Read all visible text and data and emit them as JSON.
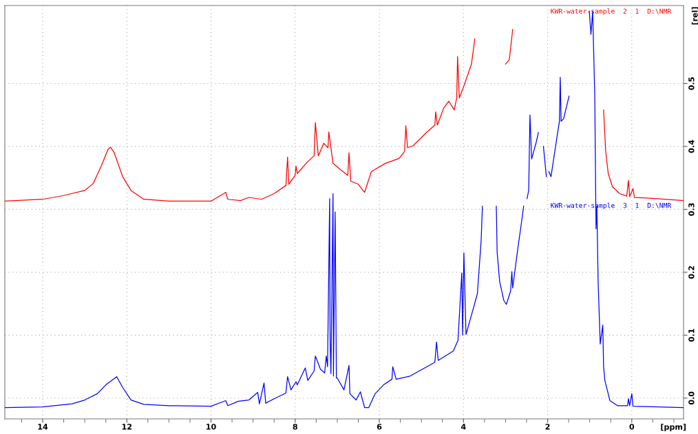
{
  "chart_data": {
    "type": "line",
    "xlabel": "[ppm]",
    "ylabel": "[rel]",
    "xlim": [
      14.9,
      -1.23
    ],
    "ylim": [
      -0.033,
      0.624
    ],
    "xticks": [
      {
        "value": 14,
        "label": "14"
      },
      {
        "value": 12,
        "label": "12"
      },
      {
        "value": 10,
        "label": "10"
      },
      {
        "value": 8,
        "label": "8"
      },
      {
        "value": 6,
        "label": "6"
      },
      {
        "value": 4,
        "label": "4"
      },
      {
        "value": 2,
        "label": "2"
      },
      {
        "value": 0,
        "label": "0"
      },
      {
        "value": 14.5,
        "label": null
      },
      {
        "value": 13.5,
        "label": null
      },
      {
        "value": 13,
        "label": null
      },
      {
        "value": 12.5,
        "label": null
      },
      {
        "value": 11.5,
        "label": null
      },
      {
        "value": 11,
        "label": null
      },
      {
        "value": 10.5,
        "label": null
      },
      {
        "value": 9.5,
        "label": null
      },
      {
        "value": 9,
        "label": null
      },
      {
        "value": 8.5,
        "label": null
      },
      {
        "value": 7.5,
        "label": null
      },
      {
        "value": 7,
        "label": null
      },
      {
        "value": 6.5,
        "label": null
      },
      {
        "value": 5.5,
        "label": null
      },
      {
        "value": 5,
        "label": null
      },
      {
        "value": 4.5,
        "label": null
      },
      {
        "value": 3.5,
        "label": null
      },
      {
        "value": 3,
        "label": null
      },
      {
        "value": 2.5,
        "label": null
      },
      {
        "value": 1.5,
        "label": null
      },
      {
        "value": 1,
        "label": null
      },
      {
        "value": 0.5,
        "label": null
      },
      {
        "value": -0.5,
        "label": null
      },
      {
        "value": -1,
        "label": null
      }
    ],
    "yticks": [
      {
        "value": 0,
        "label": "0.0"
      },
      0.1,
      0.2,
      0.3,
      0.4,
      0.5
    ],
    "grid": true,
    "legend": false,
    "line_style": "solid",
    "marker": "none",
    "series": [
      {
        "name": "KWR-water-sample  2  1  D:\\NMR",
        "color": "#ff0000",
        "x": [
          14.9,
          14.0,
          13.5,
          13.0,
          12.8,
          12.6,
          12.45,
          12.39,
          12.3,
          12.1,
          11.9,
          11.6,
          11.0,
          10.0,
          9.65,
          9.6,
          9.3,
          9.1,
          8.8,
          8.5,
          8.22,
          8.18,
          8.15,
          8.0,
          7.98,
          7.95,
          7.7,
          7.55,
          7.52,
          7.45,
          7.32,
          7.22,
          7.2,
          7.1,
          6.9,
          6.75,
          6.72,
          6.68,
          6.5,
          6.35,
          6.19,
          5.86,
          5.53,
          5.4,
          5.37,
          5.33,
          5.2,
          4.88,
          4.68,
          4.66,
          4.62,
          4.47,
          4.35,
          4.22,
          4.16,
          4.14,
          4.1,
          3.98,
          3.81,
          3.73,
          3.65,
          3.4,
          3.18,
          3.0,
          2.91,
          2.83,
          2.75,
          1.5,
          0.74,
          0.67,
          0.62,
          0.56,
          0.46,
          0.29,
          0.12,
          0.08,
          0.05,
          -0.03,
          -0.06,
          -0.36,
          -1.23
        ],
        "values": [
          0.313,
          0.316,
          0.322,
          0.33,
          0.341,
          0.37,
          0.395,
          0.399,
          0.39,
          0.352,
          0.33,
          0.316,
          0.313,
          0.313,
          0.327,
          0.316,
          0.314,
          0.319,
          0.316,
          0.325,
          0.338,
          0.383,
          0.34,
          0.354,
          0.369,
          0.357,
          0.376,
          0.385,
          0.438,
          0.385,
          0.405,
          0.398,
          0.423,
          0.373,
          0.362,
          0.354,
          0.39,
          0.345,
          0.34,
          0.327,
          0.36,
          0.373,
          0.381,
          0.392,
          0.433,
          0.398,
          0.401,
          0.422,
          0.434,
          0.455,
          0.434,
          0.461,
          0.472,
          0.458,
          0.477,
          0.543,
          0.477,
          0.498,
          0.531,
          0.571,
          null,
          null,
          null,
          0.531,
          0.538,
          0.586,
          null,
          null,
          null,
          0.458,
          0.392,
          0.357,
          0.336,
          0.325,
          0.321,
          0.346,
          0.32,
          0.333,
          0.319,
          0.318,
          0.314
        ]
      },
      {
        "name": "KWR-water-sample  3  1  D:\\NMR",
        "color": "#0000ff",
        "x": [
          14.9,
          14.0,
          13.3,
          13.0,
          12.7,
          12.5,
          12.24,
          12.1,
          11.9,
          11.6,
          11.0,
          10.0,
          9.65,
          9.6,
          9.35,
          9.1,
          8.89,
          8.85,
          8.74,
          8.7,
          8.5,
          8.22,
          8.18,
          8.1,
          7.98,
          7.95,
          7.76,
          7.7,
          7.55,
          7.52,
          7.4,
          7.3,
          7.26,
          7.23,
          7.18,
          7.17,
          7.15,
          7.1,
          7.09,
          7.05,
          7.02,
          7.0,
          6.84,
          6.72,
          6.7,
          6.55,
          6.45,
          6.35,
          6.25,
          6.1,
          5.9,
          5.7,
          5.68,
          5.6,
          5.27,
          4.68,
          4.64,
          4.6,
          4.24,
          4.13,
          4.04,
          4.02,
          3.99,
          3.94,
          3.78,
          3.67,
          3.58,
          3.55,
          3.53,
          3.3,
          3.22,
          3.2,
          3.14,
          3.04,
          2.98,
          2.88,
          2.85,
          2.83,
          2.72,
          2.63,
          2.57,
          2.55,
          2.49,
          2.45,
          2.42,
          2.38,
          2.27,
          2.22,
          2.19,
          2.1,
          2.03,
          2.0,
          1.97,
          1.92,
          1.78,
          1.72,
          1.7,
          1.68,
          1.62,
          1.49,
          1.41,
          1.01,
          0.97,
          0.93,
          0.88,
          0.85,
          0.83,
          0.8,
          0.75,
          0.69,
          0.67,
          0.64,
          0.52,
          0.34,
          0.1,
          0.08,
          0.05,
          0.0,
          -0.03,
          -1.23
        ],
        "values": [
          -0.015,
          -0.014,
          -0.009,
          -0.003,
          0.007,
          0.021,
          0.034,
          0.017,
          -0.003,
          -0.01,
          -0.012,
          -0.013,
          -0.004,
          -0.012,
          -0.005,
          -0.003,
          0.009,
          -0.009,
          0.024,
          -0.008,
          -0.001,
          0.008,
          0.034,
          0.013,
          0.026,
          0.021,
          0.048,
          0.028,
          0.043,
          0.067,
          0.046,
          0.04,
          0.067,
          0.05,
          0.317,
          0.094,
          0.039,
          0.325,
          0.035,
          0.296,
          0.032,
          0.032,
          0.013,
          0.052,
          0.007,
          -0.003,
          0.01,
          -0.015,
          -0.015,
          0.007,
          0.021,
          0.03,
          0.05,
          0.03,
          0.035,
          0.057,
          0.089,
          0.06,
          0.075,
          0.092,
          0.199,
          0.1,
          0.231,
          0.101,
          0.139,
          0.166,
          0.25,
          0.305,
          null,
          null,
          0.305,
          0.232,
          0.185,
          0.155,
          0.149,
          0.17,
          0.201,
          0.175,
          0.232,
          0.275,
          0.305,
          null,
          0.317,
          0.33,
          0.45,
          0.38,
          0.407,
          0.422,
          null,
          0.4,
          0.352,
          null,
          0.36,
          0.352,
          0.414,
          0.44,
          0.51,
          0.44,
          0.444,
          0.48,
          null,
          0.615,
          0.578,
          0.615,
          0.483,
          0.269,
          0.305,
          0.185,
          0.086,
          0.116,
          0.05,
          0.028,
          -0.004,
          -0.012,
          -0.012,
          -0.001,
          -0.012,
          0.007,
          -0.013,
          -0.015
        ]
      }
    ]
  }
}
